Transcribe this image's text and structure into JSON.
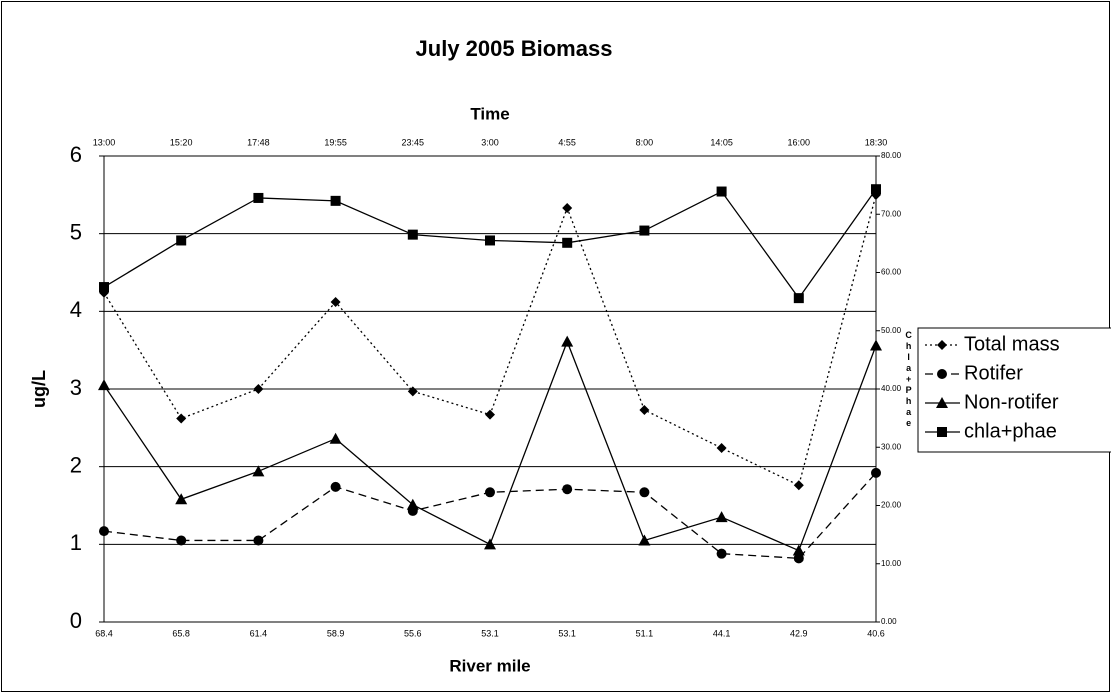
{
  "chart_data": {
    "type": "line",
    "title": "July 2005 Biomass",
    "x_label": "River mile",
    "x2_label": "Time",
    "y_label": "ug/L",
    "y2_label": "Chla+Phae",
    "categories": [
      "68.4",
      "65.8",
      "61.4",
      "58.9",
      "55.6",
      "53.1",
      "53.1",
      "51.1",
      "44.1",
      "42.9",
      "40.6"
    ],
    "top_categories": [
      "13:00",
      "15:20",
      "17:48",
      "19:55",
      "23:45",
      "3:00",
      "4:55",
      "8:00",
      "14:05",
      "16:00",
      "18:30"
    ],
    "ylim": [
      0,
      6
    ],
    "yticks": [
      0,
      1,
      2,
      3,
      4,
      5,
      6
    ],
    "y2lim": [
      0,
      80
    ],
    "y2ticks": [
      {
        "value": 0,
        "label": "0.00"
      },
      {
        "value": 10,
        "label": "10.00"
      },
      {
        "value": 20,
        "label": "20.00"
      },
      {
        "value": 30,
        "label": "30.00"
      },
      {
        "value": 40,
        "label": "40.00"
      },
      {
        "value": 50,
        "label": "50.00"
      },
      {
        "value": 60,
        "label": "60.00"
      },
      {
        "value": 70,
        "label": "70.00"
      },
      {
        "value": 80,
        "label": "80.00"
      }
    ],
    "grid": true,
    "legend": "right",
    "series": [
      {
        "name": "Total mass",
        "color": "#000000",
        "line_style": "dotted",
        "marker": "diamond",
        "values": [
          4.24,
          2.62,
          3.0,
          4.12,
          2.97,
          2.67,
          5.33,
          2.73,
          2.24,
          1.76,
          5.5
        ]
      },
      {
        "name": "Rotifer",
        "color": "#000000",
        "line_style": "dashed",
        "marker": "circle",
        "values": [
          1.17,
          1.05,
          1.05,
          1.74,
          1.43,
          1.67,
          1.71,
          1.67,
          0.88,
          0.82,
          1.92
        ]
      },
      {
        "name": "Non-rotifer",
        "color": "#000000",
        "line_style": "solid",
        "marker": "triangle",
        "values": [
          3.05,
          1.58,
          1.94,
          2.36,
          1.51,
          1.0,
          3.61,
          1.05,
          1.35,
          0.92,
          3.56
        ]
      },
      {
        "name": "chla+phae",
        "color": "#000000",
        "line_style": "solid",
        "marker": "square",
        "axis": "y2",
        "values": [
          57.5,
          65.5,
          72.8,
          72.3,
          66.5,
          65.5,
          65.1,
          67.2,
          73.9,
          55.6,
          74.3
        ]
      }
    ]
  }
}
